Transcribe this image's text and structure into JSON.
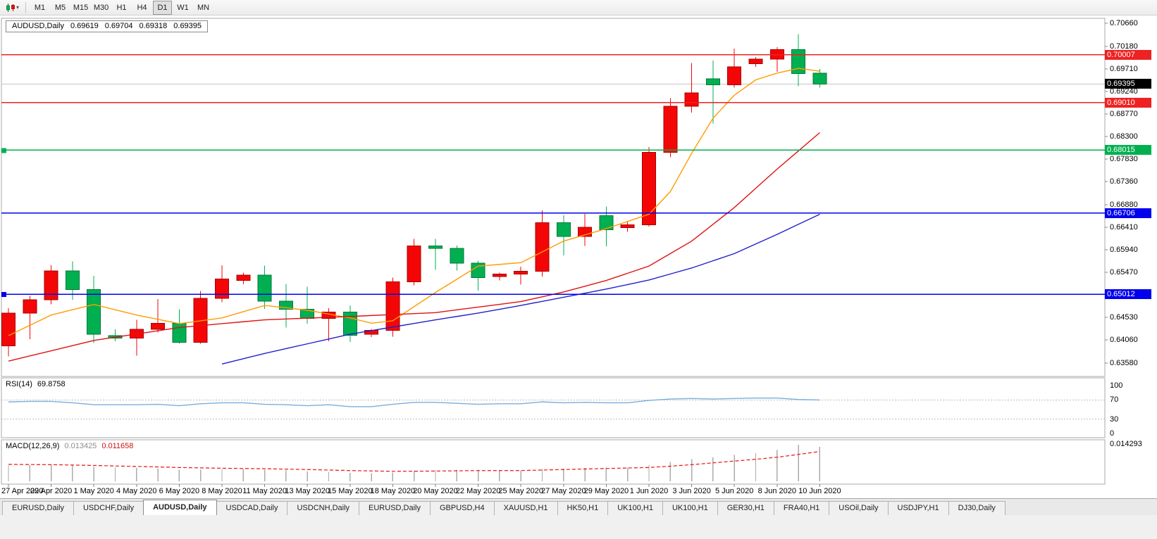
{
  "toolbar": {
    "chart_type_button": {
      "icon": "candlestick-chart-icon",
      "dropdown_icon": "chevron-down-icon"
    },
    "timeframes": [
      "M1",
      "M5",
      "M15",
      "M30",
      "H1",
      "H4",
      "D1",
      "W1",
      "MN"
    ],
    "active_timeframe": "D1"
  },
  "chart_data": {
    "type": "candlestick",
    "title_symbol": "AUDUSD,Daily",
    "ohlc_display": {
      "open": "0.69619",
      "high": "0.69704",
      "low": "0.69318",
      "close": "0.69395"
    },
    "up_color": "#f40606",
    "up_border": "#a80000",
    "down_color": "#00b050",
    "down_border": "#00763a",
    "price_axis_labels": [
      "0.70660",
      "0.70180",
      "0.69710",
      "0.69240",
      "0.68770",
      "0.68300",
      "0.67830",
      "0.67360",
      "0.66880",
      "0.66410",
      "0.65940",
      "0.65470",
      "0.65000",
      "0.64530",
      "0.64060",
      "0.63580"
    ],
    "current_price": {
      "label": "0.69395",
      "value": 0.69395,
      "badge_color": "#000000",
      "line_color": "#c6c6c6"
    },
    "levels": [
      {
        "value": 0.70007,
        "label": "0.70007",
        "color": "#ee2222",
        "edge_marker": false
      },
      {
        "value": 0.6901,
        "label": "0.69010",
        "color": "#ee2222",
        "edge_marker": false
      },
      {
        "value": 0.68015,
        "label": "0.68015",
        "color": "#00b050",
        "edge_marker": true
      },
      {
        "value": 0.66706,
        "label": "0.66706",
        "color": "#0000ee",
        "edge_marker": false
      },
      {
        "value": 0.65012,
        "label": "0.65012",
        "color": "#0000ee",
        "edge_marker": true
      }
    ],
    "candles": [
      [
        "27 Apr 2020",
        0.6394,
        0.6472,
        0.6372,
        0.6462
      ],
      [
        "28 Apr 2020",
        0.6462,
        0.6498,
        0.6408,
        0.649
      ],
      [
        "29 Apr 2020",
        0.649,
        0.6562,
        0.648,
        0.655
      ],
      [
        "30 Apr 2020",
        0.655,
        0.657,
        0.649,
        0.6511
      ],
      [
        "1 May 2020",
        0.6511,
        0.654,
        0.64,
        0.6418
      ],
      [
        "3 May 2020",
        0.6415,
        0.6428,
        0.6403,
        0.641
      ],
      [
        "4 May 2020",
        0.641,
        0.6448,
        0.6373,
        0.6428
      ],
      [
        "5 May 2020",
        0.6428,
        0.6491,
        0.6422,
        0.6441
      ],
      [
        "6 May 2020",
        0.6441,
        0.647,
        0.6398,
        0.6401
      ],
      [
        "7 May 2020",
        0.6401,
        0.6508,
        0.6398,
        0.6493
      ],
      [
        "8 May 2020",
        0.6493,
        0.6562,
        0.6485,
        0.6533
      ],
      [
        "10 May 2020",
        0.653,
        0.6546,
        0.6522,
        0.6541
      ],
      [
        "11 May 2020",
        0.6541,
        0.6561,
        0.6471,
        0.6487
      ],
      [
        "12 May 2020",
        0.6487,
        0.6523,
        0.6432,
        0.647
      ],
      [
        "13 May 2020",
        0.647,
        0.6517,
        0.644,
        0.6451
      ],
      [
        "14 May 2020",
        0.6451,
        0.6472,
        0.6403,
        0.6464
      ],
      [
        "15 May 2020",
        0.6464,
        0.6478,
        0.6402,
        0.6416
      ],
      [
        "17 May 2020",
        0.6418,
        0.6429,
        0.6412,
        0.6426
      ],
      [
        "18 May 2020",
        0.6426,
        0.6536,
        0.6413,
        0.6527
      ],
      [
        "19 May 2020",
        0.6527,
        0.6617,
        0.652,
        0.6602
      ],
      [
        "20 May 2020",
        0.6602,
        0.6617,
        0.6552,
        0.6597
      ],
      [
        "21 May 2020",
        0.6597,
        0.6603,
        0.6551,
        0.6566
      ],
      [
        "22 May 2020",
        0.6566,
        0.6571,
        0.6509,
        0.6536
      ],
      [
        "24 May 2020",
        0.6538,
        0.6546,
        0.653,
        0.6543
      ],
      [
        "25 May 2020",
        0.6543,
        0.6559,
        0.6521,
        0.6549
      ],
      [
        "26 May 2020",
        0.6549,
        0.6676,
        0.6538,
        0.665
      ],
      [
        "27 May 2020",
        0.665,
        0.6666,
        0.6582,
        0.6622
      ],
      [
        "28 May 2020",
        0.6622,
        0.6669,
        0.6602,
        0.6641
      ],
      [
        "29 May 2020",
        0.6665,
        0.6684,
        0.6601,
        0.6636
      ],
      [
        "31 May 2020",
        0.664,
        0.6652,
        0.6631,
        0.6646
      ],
      [
        "1 Jun 2020",
        0.6646,
        0.6808,
        0.6642,
        0.6797
      ],
      [
        "2 Jun 2020",
        0.6797,
        0.691,
        0.6787,
        0.6893
      ],
      [
        "3 Jun 2020",
        0.6893,
        0.6983,
        0.688,
        0.6921
      ],
      [
        "4 Jun 2020",
        0.695,
        0.6988,
        0.6857,
        0.6938
      ],
      [
        "5 Jun 2020",
        0.6938,
        0.7013,
        0.6932,
        0.6975
      ],
      [
        "7 Jun 2020",
        0.6982,
        0.6996,
        0.6975,
        0.6991
      ],
      [
        "8 Jun 2020",
        0.6991,
        0.7016,
        0.6965,
        0.7011
      ],
      [
        "9 Jun 2020",
        0.7011,
        0.7043,
        0.6935,
        0.6961
      ],
      [
        "10 Jun 2020",
        0.69619,
        0.69704,
        0.69318,
        0.69395
      ]
    ],
    "moving_averages": [
      {
        "name": "fast-ma",
        "color": "#ff9c00",
        "points": [
          [
            0,
            0.6415
          ],
          [
            2,
            0.6458
          ],
          [
            4,
            0.648
          ],
          [
            6,
            0.6458
          ],
          [
            8,
            0.644
          ],
          [
            10,
            0.6452
          ],
          [
            12,
            0.6478
          ],
          [
            14,
            0.6468
          ],
          [
            16,
            0.6452
          ],
          [
            17,
            0.6441
          ],
          [
            18,
            0.6446
          ],
          [
            20,
            0.6505
          ],
          [
            22,
            0.656
          ],
          [
            24,
            0.6567
          ],
          [
            26,
            0.6612
          ],
          [
            28,
            0.6638
          ],
          [
            30,
            0.6668
          ],
          [
            31,
            0.6715
          ],
          [
            32,
            0.6795
          ],
          [
            33,
            0.6868
          ],
          [
            34,
            0.6916
          ],
          [
            35,
            0.6948
          ],
          [
            36,
            0.6962
          ],
          [
            37,
            0.6972
          ],
          [
            38,
            0.6966
          ]
        ]
      },
      {
        "name": "mid-ma",
        "color": "#e01212",
        "points": [
          [
            0,
            0.6362
          ],
          [
            4,
            0.6405
          ],
          [
            8,
            0.6432
          ],
          [
            12,
            0.6448
          ],
          [
            16,
            0.6455
          ],
          [
            20,
            0.6463
          ],
          [
            24,
            0.6486
          ],
          [
            26,
            0.6506
          ],
          [
            28,
            0.653
          ],
          [
            30,
            0.656
          ],
          [
            32,
            0.6612
          ],
          [
            34,
            0.6682
          ],
          [
            36,
            0.6762
          ],
          [
            38,
            0.6838
          ]
        ]
      },
      {
        "name": "slow-ma",
        "color": "#2020cc",
        "points": [
          [
            10,
            0.6356
          ],
          [
            12,
            0.6378
          ],
          [
            14,
            0.6398
          ],
          [
            16,
            0.6418
          ],
          [
            18,
            0.6433
          ],
          [
            20,
            0.6448
          ],
          [
            22,
            0.6462
          ],
          [
            24,
            0.6478
          ],
          [
            26,
            0.6495
          ],
          [
            28,
            0.6512
          ],
          [
            30,
            0.6531
          ],
          [
            32,
            0.6556
          ],
          [
            34,
            0.6586
          ],
          [
            36,
            0.6626
          ],
          [
            38,
            0.6668
          ]
        ]
      }
    ],
    "date_axis_labels": [
      "27 Apr 2020",
      "29 Apr 2020",
      "1 May 2020",
      "4 May 2020",
      "6 May 2020",
      "8 May 2020",
      "11 May 2020",
      "13 May 2020",
      "15 May 2020",
      "18 May 2020",
      "20 May 2020",
      "22 May 2020",
      "25 May 2020",
      "27 May 2020",
      "29 May 2020",
      "1 Jun 2020",
      "3 Jun 2020",
      "5 Jun 2020",
      "8 Jun 2020",
      "10 Jun 2020"
    ],
    "rsi": {
      "label": "RSI(14)",
      "value": "69.8758",
      "axis_labels": [
        "100",
        "70",
        "30",
        "0"
      ],
      "line_color": "#79aede",
      "values": [
        66,
        67,
        67,
        64,
        60,
        60,
        60,
        61,
        58,
        62,
        64,
        64,
        61,
        60,
        58,
        60,
        56,
        56,
        61,
        65,
        65,
        63,
        61,
        62,
        62,
        66,
        64,
        65,
        64,
        64,
        69,
        72,
        73,
        72,
        73,
        74,
        74,
        71,
        69.88
      ]
    },
    "macd": {
      "label": "MACD(12,26,9)",
      "main_value": "0.013425",
      "signal_value": "0.011658",
      "axis_max_label": "0.014293",
      "histogram_color": "#ababab",
      "signal_color": "#ee1111",
      "main": [
        0.0062,
        0.0063,
        0.0065,
        0.0064,
        0.0058,
        0.0055,
        0.0052,
        0.005,
        0.0046,
        0.0046,
        0.0048,
        0.0048,
        0.0045,
        0.0042,
        0.0038,
        0.0036,
        0.0033,
        0.0031,
        0.0034,
        0.004,
        0.0044,
        0.0045,
        0.0043,
        0.0042,
        0.0042,
        0.0048,
        0.005,
        0.0052,
        0.0053,
        0.0054,
        0.0063,
        0.0075,
        0.0086,
        0.0094,
        0.0103,
        0.011,
        0.0122,
        0.014293,
        0.013425
      ],
      "signal": [
        0.0066,
        0.00655,
        0.0065,
        0.00635,
        0.0062,
        0.006,
        0.0058,
        0.0056,
        0.0054,
        0.00525,
        0.0051,
        0.005,
        0.0049,
        0.00475,
        0.0046,
        0.0044,
        0.0042,
        0.00405,
        0.0039,
        0.00395,
        0.004,
        0.0041,
        0.0042,
        0.0042,
        0.0042,
        0.0044,
        0.0046,
        0.0048,
        0.005,
        0.0052,
        0.0054,
        0.0059,
        0.0065,
        0.0072,
        0.0079,
        0.0086,
        0.0094,
        0.0105,
        0.011658
      ]
    }
  },
  "tabs": {
    "items": [
      "EURUSD,Daily",
      "USDCHF,Daily",
      "AUDUSD,Daily",
      "USDCAD,Daily",
      "USDCNH,Daily",
      "EURUSD,Daily",
      "GBPUSD,H4",
      "XAUUSD,H1",
      "HK50,H1",
      "UK100,H1",
      "UK100,H1",
      "GER30,H1",
      "FRA40,H1",
      "USOil,Daily",
      "USDJPY,H1",
      "DJ30,Daily"
    ],
    "active_index": 2
  }
}
